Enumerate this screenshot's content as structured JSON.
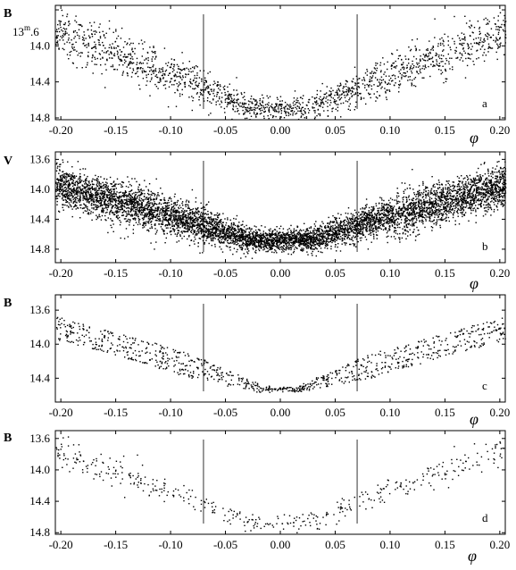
{
  "chart_data": [
    {
      "type": "scatter",
      "panel": "a",
      "band": "B",
      "xlabel": "φ",
      "ylabel": "B",
      "xlim": [
        -0.205,
        0.205
      ],
      "ylim": [
        14.82,
        13.55
      ],
      "y_inverted": true,
      "xticks": [
        "-0.20",
        "-0.15",
        "-0.10",
        "-0.05",
        "0.00",
        "0.05",
        "0.10",
        "0.15",
        "0.20"
      ],
      "yticks": [
        "13.6",
        "14.0",
        "14.4",
        "14.8"
      ],
      "y_top_tick": "13",
      "y_top_tick_sup": "m",
      "y_top_tick_tail": ".6",
      "vlines": [
        -0.07,
        0.07
      ],
      "curve": {
        "shape": "V",
        "minimum_phase": 0.0,
        "minimum_mag": 14.68,
        "edge_mag": 13.85,
        "spread_mag": 0.38,
        "flat_halfwidth": 0.03
      },
      "n_points": 1700,
      "grid": false
    },
    {
      "type": "scatter",
      "panel": "b",
      "band": "V",
      "xlabel": "φ",
      "ylabel": "V",
      "xlim": [
        -0.205,
        0.205
      ],
      "ylim": [
        14.98,
        13.5
      ],
      "y_inverted": true,
      "xticks": [
        "-0.20",
        "-0.15",
        "-0.10",
        "-0.05",
        "0.00",
        "0.05",
        "0.10",
        "0.15",
        "0.20"
      ],
      "yticks": [
        "13.6",
        "14.0",
        "14.4",
        "14.8"
      ],
      "vlines": [
        -0.07,
        0.07
      ],
      "curve": {
        "shape": "V",
        "minimum_phase": 0.0,
        "minimum_mag": 14.67,
        "edge_mag": 13.95,
        "spread_mag": 0.42,
        "flat_halfwidth": 0.03
      },
      "n_points": 6500,
      "grid": false
    },
    {
      "type": "scatter",
      "panel": "c",
      "band": "B",
      "xlabel": "φ",
      "ylabel": "B",
      "xlim": [
        -0.205,
        0.205
      ],
      "ylim": [
        14.68,
        13.42
      ],
      "y_inverted": true,
      "xticks": [
        "-0.20",
        "-0.15",
        "-0.10",
        "-0.05",
        "0.00",
        "0.05",
        "0.10",
        "0.15",
        "0.20"
      ],
      "yticks": [
        "13.6",
        "14.0",
        "14.4"
      ],
      "vlines": [
        -0.07,
        0.07
      ],
      "curve": {
        "shape": "tracks",
        "minimum_phase": 0.0,
        "minimum_mag": 14.52,
        "edge_mag": 13.8,
        "track_offsets_mag": [
          -0.12,
          -0.06,
          0.0,
          0.06,
          0.12
        ],
        "flat_halfwidth": 0.02
      },
      "n_points": 900,
      "grid": false
    },
    {
      "type": "scatter",
      "panel": "d",
      "band": "B",
      "xlabel": "φ",
      "ylabel": "B",
      "xlim": [
        -0.205,
        0.205
      ],
      "ylim": [
        14.82,
        13.5
      ],
      "y_inverted": true,
      "xticks": [
        "-0.20",
        "-0.15",
        "-0.10",
        "-0.05",
        "0.00",
        "0.05",
        "0.10",
        "0.15",
        "0.20"
      ],
      "yticks": [
        "13.6",
        "14.0",
        "14.4",
        "14.8"
      ],
      "vlines": [
        -0.07,
        0.07
      ],
      "curve": {
        "shape": "V",
        "minimum_phase": 0.0,
        "minimum_mag": 14.66,
        "edge_mag": 13.75,
        "spread_mag": 0.3,
        "flat_halfwidth": 0.03
      },
      "n_points": 420,
      "grid": false
    }
  ]
}
